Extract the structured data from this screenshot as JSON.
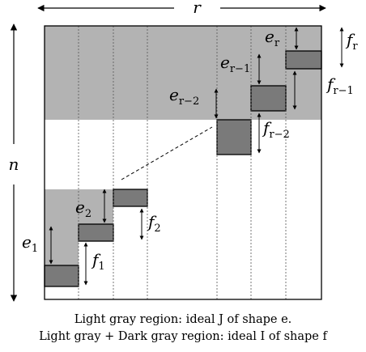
{
  "axes": {
    "r": "r",
    "n": "n"
  },
  "labels": {
    "e1": {
      "base": "e",
      "sub": "1"
    },
    "e2": {
      "base": "e",
      "sub": "2"
    },
    "er2": {
      "base": "e",
      "sub": "r−2"
    },
    "er1": {
      "base": "e",
      "sub": "r−1"
    },
    "er": {
      "base": "e",
      "sub": "r"
    },
    "f1": {
      "base": "f",
      "sub": "1"
    },
    "f2": {
      "base": "f",
      "sub": "2"
    },
    "fr2": {
      "base": "f",
      "sub": "r−2"
    },
    "fr1": {
      "base": "f",
      "sub": "r−1"
    },
    "fr": {
      "base": "f",
      "sub": "r"
    }
  },
  "caption": {
    "line1": "Light gray region: ideal J of shape e.",
    "line2": "Light gray + Dark gray region: ideal I of shape f"
  },
  "colors": {
    "light_gray": "#b3b3b3",
    "dark_gray": "#7a7a7a",
    "outline": "#000000"
  }
}
